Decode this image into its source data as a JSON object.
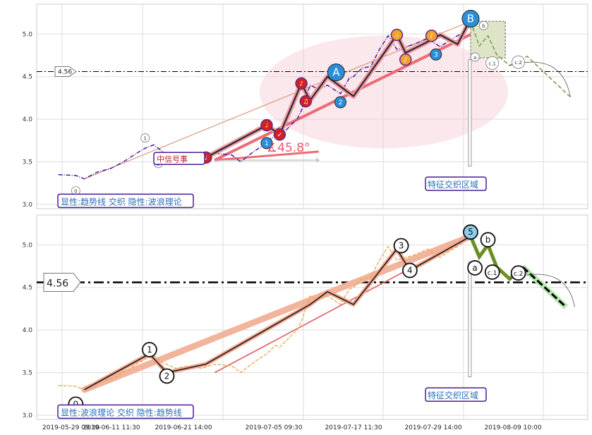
{
  "chart_data": [
    {
      "type": "line",
      "panel": "top",
      "ylim": [
        2.95,
        5.35
      ],
      "yticks": [
        "3.0",
        "3.5",
        "4.0",
        "4.5",
        "5.0"
      ],
      "grid": true,
      "price_series": [
        [
          0,
          3.35
        ],
        [
          4,
          3.34
        ],
        [
          6,
          3.3
        ],
        [
          9,
          3.38
        ],
        [
          12,
          3.42
        ],
        [
          15,
          3.5
        ],
        [
          18,
          3.6
        ],
        [
          20,
          3.66
        ],
        [
          22,
          3.7
        ],
        [
          24,
          3.62
        ],
        [
          27,
          3.55
        ],
        [
          30,
          3.58
        ],
        [
          33,
          3.55
        ],
        [
          36,
          3.6
        ],
        [
          40,
          3.58
        ],
        [
          42,
          3.5
        ],
        [
          45,
          3.62
        ],
        [
          48,
          3.72
        ],
        [
          50,
          3.82
        ],
        [
          51,
          3.8
        ],
        [
          53,
          3.9
        ],
        [
          55,
          4.0
        ],
        [
          56,
          4.1
        ],
        [
          58,
          4.4
        ],
        [
          60,
          4.35
        ],
        [
          62,
          4.4
        ],
        [
          65,
          4.3
        ],
        [
          67,
          4.48
        ],
        [
          68,
          4.5
        ],
        [
          70,
          4.6
        ],
        [
          72,
          4.62
        ],
        [
          74,
          4.82
        ],
        [
          76,
          4.98
        ],
        [
          78,
          4.82
        ],
        [
          80,
          4.85
        ],
        [
          82,
          4.88
        ],
        [
          85,
          4.95
        ],
        [
          88,
          4.85
        ],
        [
          90,
          4.92
        ],
        [
          92,
          4.98
        ],
        [
          94,
          5.05
        ],
        [
          95,
          5.1
        ]
      ],
      "wave_path": [
        [
          34,
          3.55
        ],
        [
          48,
          3.93
        ],
        [
          51,
          3.82
        ],
        [
          56,
          4.42
        ],
        [
          58,
          4.22
        ],
        [
          62,
          4.5
        ],
        [
          68,
          4.27
        ],
        [
          74,
          4.7
        ],
        [
          78,
          4.99
        ],
        [
          80,
          4.78
        ],
        [
          84,
          4.88
        ],
        [
          88,
          4.99
        ],
        [
          92,
          4.88
        ],
        [
          95,
          5.18
        ]
      ],
      "wave_markers": [
        {
          "x": 48,
          "y": 3.93,
          "color": "#d62020",
          "glyph": "♩"
        },
        {
          "x": 51,
          "y": 3.82,
          "color": "#d62020",
          "glyph": "✓"
        },
        {
          "x": 56,
          "y": 4.42,
          "color": "#d62020",
          "glyph": "♪"
        },
        {
          "x": 57,
          "y": 4.21,
          "color": "#d62020",
          "glyph": "♫"
        },
        {
          "x": 78,
          "y": 4.99,
          "color": "#f3a030",
          "glyph": "♩"
        },
        {
          "x": 80,
          "y": 4.7,
          "color": "#f3a030",
          "glyph": "♪"
        },
        {
          "x": 86,
          "y": 4.98,
          "color": "#f3a030",
          "glyph": "♪"
        },
        {
          "x": 34,
          "y": 3.55,
          "color": "#d62020",
          "glyph": "♩"
        }
      ],
      "blue_labels": [
        {
          "text": "1",
          "x": 48,
          "y": 3.72,
          "size": 8
        },
        {
          "text": "A",
          "x": 64,
          "y": 4.55,
          "size": 12
        },
        {
          "text": "2",
          "x": 65,
          "y": 4.2,
          "size": 8
        },
        {
          "text": "3",
          "x": 87,
          "y": 4.76,
          "size": 8
        },
        {
          "text": "B",
          "x": 95,
          "y": 5.18,
          "size": 12
        }
      ],
      "grey_labels": [
        {
          "text": "0",
          "x": 4,
          "y": 3.16
        },
        {
          "text": "1",
          "x": 20,
          "y": 3.78
        },
        {
          "text": "2",
          "x": 23,
          "y": 3.48
        },
        {
          "text": "a",
          "x": 96,
          "y": 4.73
        },
        {
          "text": "b",
          "x": 98,
          "y": 5.1
        },
        {
          "text": "c.1",
          "x": 100,
          "y": 4.66
        },
        {
          "text": "c.2",
          "x": 106,
          "y": 4.67
        }
      ],
      "hline_value": 4.56,
      "hline_label": "4.56",
      "angle_label": "∡45.8°",
      "tag_label": "中信号事",
      "zone_label": "特征交织区域",
      "legend_label": "显性:趋势线 交织 隐性:波浪理论"
    },
    {
      "type": "line",
      "panel": "bottom",
      "ylim": [
        2.95,
        5.35
      ],
      "yticks": [
        "3.0",
        "3.5",
        "4.0",
        "4.5",
        "5.0"
      ],
      "grid": true,
      "xticks": [
        "2019-05-29 09:30",
        "2019-06-11 11:30",
        "2019-06-21 14:00",
        "2019-07-05 09:30",
        "2019-07-17 11:30",
        "2019-07-29 14:00",
        "2019-08-09 10:00"
      ],
      "price_series": [
        [
          0,
          3.35
        ],
        [
          4,
          3.34
        ],
        [
          6,
          3.3
        ],
        [
          9,
          3.38
        ],
        [
          12,
          3.42
        ],
        [
          15,
          3.5
        ],
        [
          18,
          3.6
        ],
        [
          20,
          3.66
        ],
        [
          22,
          3.7
        ],
        [
          24,
          3.62
        ],
        [
          27,
          3.55
        ],
        [
          30,
          3.58
        ],
        [
          33,
          3.55
        ],
        [
          36,
          3.6
        ],
        [
          40,
          3.58
        ],
        [
          42,
          3.5
        ],
        [
          45,
          3.62
        ],
        [
          48,
          3.72
        ],
        [
          50,
          3.82
        ],
        [
          51,
          3.8
        ],
        [
          53,
          3.9
        ],
        [
          55,
          4.0
        ],
        [
          56,
          4.1
        ],
        [
          58,
          4.4
        ],
        [
          60,
          4.35
        ],
        [
          62,
          4.4
        ],
        [
          65,
          4.3
        ],
        [
          67,
          4.48
        ],
        [
          68,
          4.5
        ],
        [
          70,
          4.6
        ],
        [
          72,
          4.62
        ],
        [
          74,
          4.82
        ],
        [
          76,
          4.98
        ],
        [
          78,
          4.82
        ],
        [
          80,
          4.85
        ],
        [
          82,
          4.88
        ],
        [
          85,
          4.95
        ],
        [
          88,
          4.85
        ],
        [
          90,
          4.92
        ],
        [
          92,
          4.98
        ],
        [
          94,
          5.05
        ],
        [
          95,
          5.1
        ]
      ],
      "wave_labels": [
        {
          "text": "0",
          "x": 4,
          "y": 3.13
        },
        {
          "text": "1",
          "x": 21,
          "y": 3.77
        },
        {
          "text": "2",
          "x": 25,
          "y": 3.46
        },
        {
          "text": "3",
          "x": 79,
          "y": 4.99
        },
        {
          "text": "4",
          "x": 81,
          "y": 4.7
        },
        {
          "text": "5",
          "x": 95,
          "y": 5.15
        },
        {
          "text": "a",
          "x": 96,
          "y": 4.73
        },
        {
          "text": "b",
          "x": 99,
          "y": 5.06
        },
        {
          "text": "c.1",
          "x": 100,
          "y": 4.68
        },
        {
          "text": "c.2",
          "x": 106,
          "y": 4.67
        }
      ],
      "hline_value": 4.56,
      "hline_label": "4.56",
      "zone_label": "特征交织区域",
      "legend_label": "显性:波浪理论 交织 隐性:趋势线"
    }
  ]
}
